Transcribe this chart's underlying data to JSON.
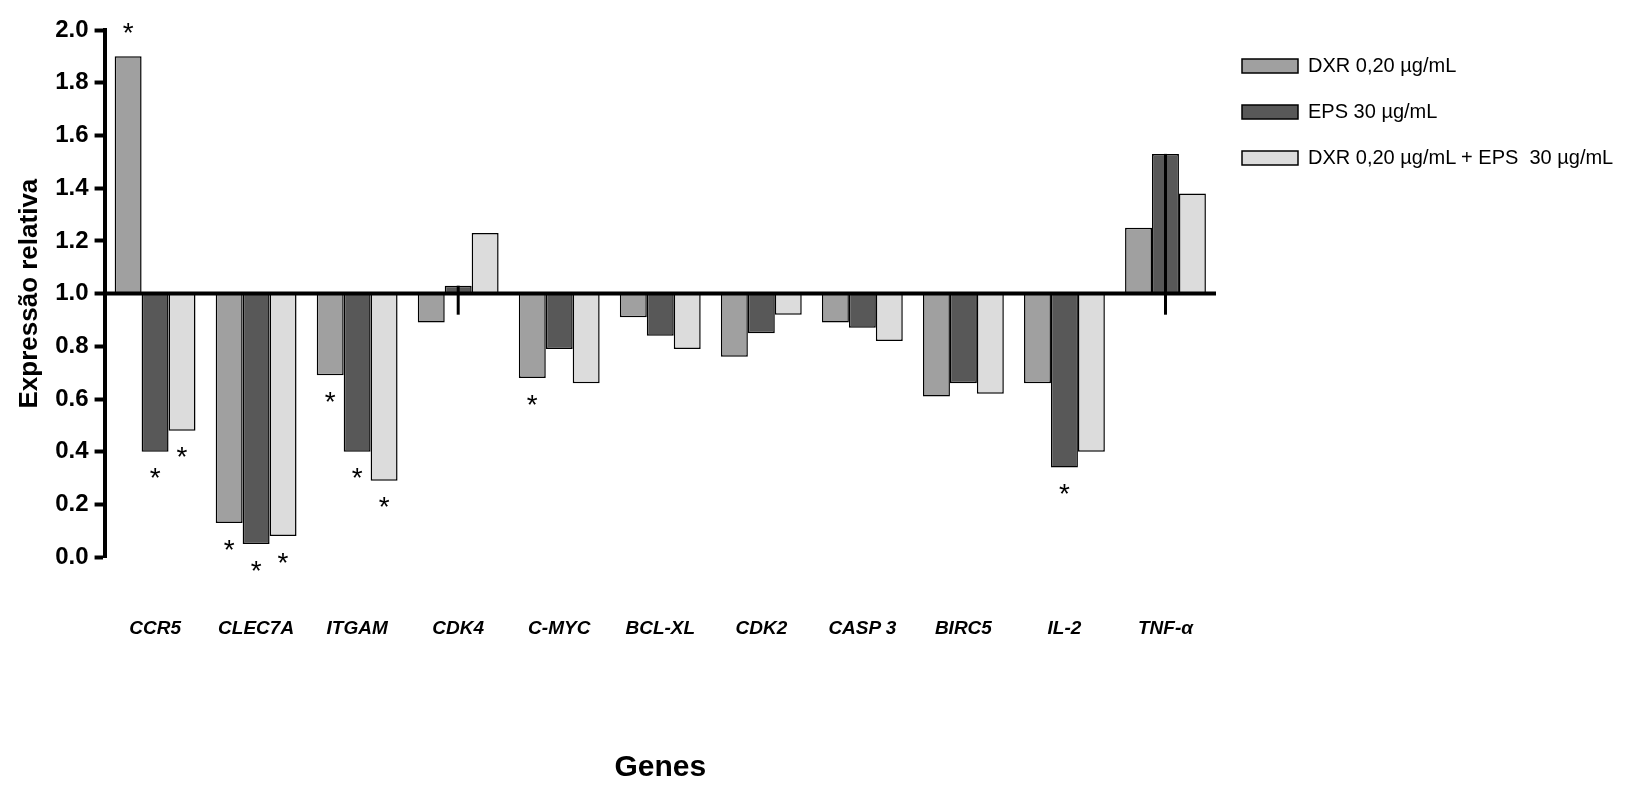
{
  "chart_data": {
    "type": "bar",
    "xlabel": "Genes",
    "ylabel": "Expressão relativa",
    "categories": [
      "CCR5",
      "CLEC7A",
      "ITGAM",
      "CDK4",
      "C-MYC",
      "BCL-XL",
      "CDK2",
      "CASP 3",
      "BIRC5",
      "IL-2",
      "TNF-α"
    ],
    "series": [
      {
        "name": "DXR 0,20 µg/mL",
        "color": "#a0a0a0",
        "base": [
          1,
          1,
          1,
          1,
          1,
          1,
          1,
          1,
          1,
          1,
          1
        ],
        "values": [
          0.9,
          -0.87,
          -0.31,
          -0.11,
          -0.32,
          -0.09,
          -0.24,
          -0.11,
          -0.39,
          -0.34,
          0.25
        ],
        "value_labels": [
          "*",
          "*",
          "*",
          null,
          "*",
          null,
          null,
          null,
          null,
          null,
          null
        ]
      },
      {
        "name": "EPS 30 µg/mL",
        "color": "#585858",
        "base": [
          1,
          1,
          1,
          1,
          1,
          1,
          1,
          1,
          1,
          1,
          1
        ],
        "values": [
          -0.6,
          -0.95,
          -0.6,
          0.03,
          -0.21,
          -0.16,
          -0.15,
          -0.13,
          -0.34,
          -0.66,
          0.53
        ],
        "value_labels": [
          "*",
          "*",
          "*",
          null,
          null,
          null,
          null,
          null,
          null,
          "*",
          null
        ],
        "errors": [
          null,
          null,
          null,
          [
            0.92,
            1.03
          ],
          null,
          null,
          null,
          null,
          null,
          null,
          [
            0.92,
            1.53
          ]
        ]
      },
      {
        "name": "DXR 0,20 µg/mL + EPS  30 µg/mL",
        "color": "#dcdcdc",
        "base": [
          1,
          1,
          1,
          1,
          1,
          1,
          1,
          1,
          1,
          1,
          1
        ],
        "values": [
          -0.52,
          -0.92,
          -0.71,
          0.23,
          -0.34,
          -0.21,
          -0.08,
          -0.18,
          -0.38,
          -0.6,
          0.38
        ],
        "value_labels": [
          "*",
          "*",
          "*",
          null,
          null,
          null,
          null,
          null,
          null,
          null,
          null
        ]
      }
    ],
    "ylim": [
      0,
      2.0
    ],
    "yticks": [
      {
        "value": 0,
        "label": "0.0"
      },
      0.2,
      0.4,
      0.6,
      0.8,
      {
        "value": 1,
        "label": "1.0"
      },
      1.2,
      1.4,
      1.6,
      1.8,
      {
        "value": 2,
        "label": "2.0"
      }
    ],
    "legend": "top right"
  }
}
